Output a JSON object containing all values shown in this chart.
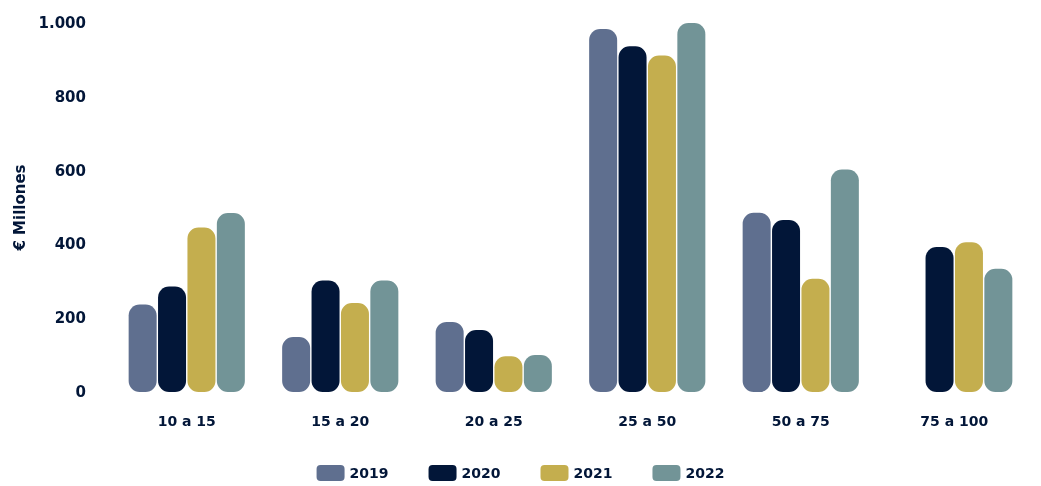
{
  "chart_data": {
    "type": "bar",
    "ylabel": "€ Millones",
    "categories": [
      "10 a 15",
      "15 a 20",
      "20 a 25",
      "25 a 50",
      "50 a 75",
      "75 a 100"
    ],
    "series": [
      {
        "name": "2019",
        "color": "#5f6f8f",
        "values": [
          237,
          149,
          190,
          984,
          486,
          null
        ]
      },
      {
        "name": "2020",
        "color": "#021638",
        "values": [
          286,
          302,
          168,
          937,
          466,
          393
        ]
      },
      {
        "name": "2021",
        "color": "#c4ae4e",
        "values": [
          446,
          241,
          97,
          912,
          307,
          406
        ]
      },
      {
        "name": "2022",
        "color": "#729497",
        "values": [
          485,
          302,
          100,
          1000,
          603,
          334
        ]
      }
    ],
    "ylim": [
      0,
      1000
    ],
    "yticks": [
      0,
      200,
      400,
      600,
      800,
      {
        "value": 1000,
        "label": "1.000"
      }
    ],
    "grid": false,
    "legend": "bottom"
  }
}
